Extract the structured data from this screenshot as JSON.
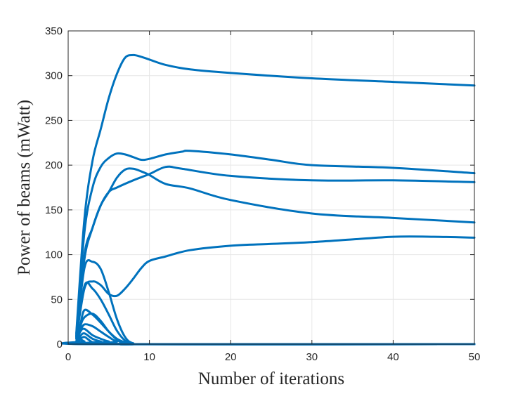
{
  "chart_data": {
    "type": "line",
    "title": "",
    "xlabel": "Number of iterations",
    "ylabel": "Power of beams (mWatt)",
    "xlim": [
      0,
      50
    ],
    "ylim": [
      0,
      350
    ],
    "xticks": [
      0,
      10,
      20,
      30,
      40,
      50
    ],
    "yticks": [
      0,
      50,
      100,
      150,
      200,
      250,
      300,
      350
    ],
    "grid": true,
    "legend": "none",
    "line_color": "#0072BD",
    "series": [
      {
        "x": [
          1,
          2,
          3,
          4,
          5,
          6,
          7,
          8,
          9,
          10,
          12,
          15,
          20,
          30,
          40,
          50
        ],
        "y": [
          12,
          140,
          205,
          240,
          275,
          302,
          320,
          323,
          321,
          318,
          312,
          307,
          303,
          297,
          293,
          289
        ]
      },
      {
        "x": [
          1,
          2,
          3,
          4,
          5,
          6,
          7,
          8,
          9,
          10,
          12,
          14,
          15,
          20,
          25,
          30,
          40,
          50
        ],
        "y": [
          10,
          125,
          175,
          198,
          208,
          213,
          212,
          209,
          206,
          207,
          212,
          215,
          216,
          212,
          206,
          200,
          197,
          191
        ]
      },
      {
        "x": [
          1,
          2,
          3,
          4,
          5,
          6,
          7,
          8,
          9,
          10,
          12,
          15,
          20,
          30,
          40,
          50
        ],
        "y": [
          8,
          95,
          130,
          155,
          170,
          186,
          195,
          196,
          193,
          189,
          179,
          174,
          161,
          146,
          141,
          136
        ]
      },
      {
        "x": [
          1,
          2,
          3,
          4,
          5,
          6,
          8,
          10,
          12,
          14,
          20,
          30,
          40,
          50
        ],
        "y": [
          8,
          100,
          130,
          155,
          170,
          175,
          183,
          190,
          198,
          196,
          188,
          183,
          183,
          181
        ]
      },
      {
        "x": [
          1,
          2,
          3,
          4,
          5,
          6,
          7,
          8,
          9,
          10,
          12,
          15,
          20,
          25,
          30,
          35,
          40,
          45,
          50
        ],
        "y": [
          6,
          62,
          70,
          66,
          56,
          54,
          62,
          73,
          85,
          93,
          98,
          105,
          110,
          112,
          114,
          117,
          120,
          120,
          119
        ]
      },
      {
        "x": [
          1,
          2,
          3,
          4,
          5,
          6,
          7,
          8,
          10,
          50
        ],
        "y": [
          8,
          85,
          92,
          84,
          58,
          28,
          8,
          1,
          0,
          0
        ]
      },
      {
        "x": [
          1,
          2,
          3,
          4,
          5,
          6,
          7,
          8,
          10,
          50
        ],
        "y": [
          6,
          65,
          62,
          50,
          33,
          15,
          4,
          0,
          0,
          0
        ]
      },
      {
        "x": [
          1,
          1.5,
          2,
          3,
          4,
          5,
          6,
          7,
          8,
          10,
          50
        ],
        "y": [
          3,
          22,
          38,
          33,
          24,
          14,
          6,
          2,
          0,
          0,
          0
        ]
      },
      {
        "x": [
          1,
          1.5,
          2,
          3,
          4,
          5,
          6,
          7,
          10,
          50
        ],
        "y": [
          2,
          20,
          30,
          34,
          26,
          14,
          5,
          1,
          0,
          0
        ]
      },
      {
        "x": [
          1,
          1.5,
          2,
          3,
          4,
          5,
          6,
          8,
          50
        ],
        "y": [
          2,
          15,
          22,
          20,
          14,
          8,
          3,
          0,
          0
        ]
      },
      {
        "x": [
          1,
          1.5,
          2,
          3,
          4,
          5,
          7,
          50
        ],
        "y": [
          2,
          14,
          17,
          10,
          6,
          3,
          0,
          0
        ]
      },
      {
        "x": [
          1,
          1.5,
          2,
          3,
          4,
          6,
          50
        ],
        "y": [
          1,
          9,
          12,
          6,
          3,
          0,
          0
        ]
      },
      {
        "x": [
          1,
          1.5,
          2,
          2.5,
          3,
          4,
          50
        ],
        "y": [
          1,
          6,
          8,
          5,
          2,
          0,
          0
        ]
      },
      {
        "x": [
          1,
          1.5,
          2,
          3,
          50
        ],
        "y": [
          1,
          5,
          3,
          0,
          0
        ]
      }
    ]
  }
}
